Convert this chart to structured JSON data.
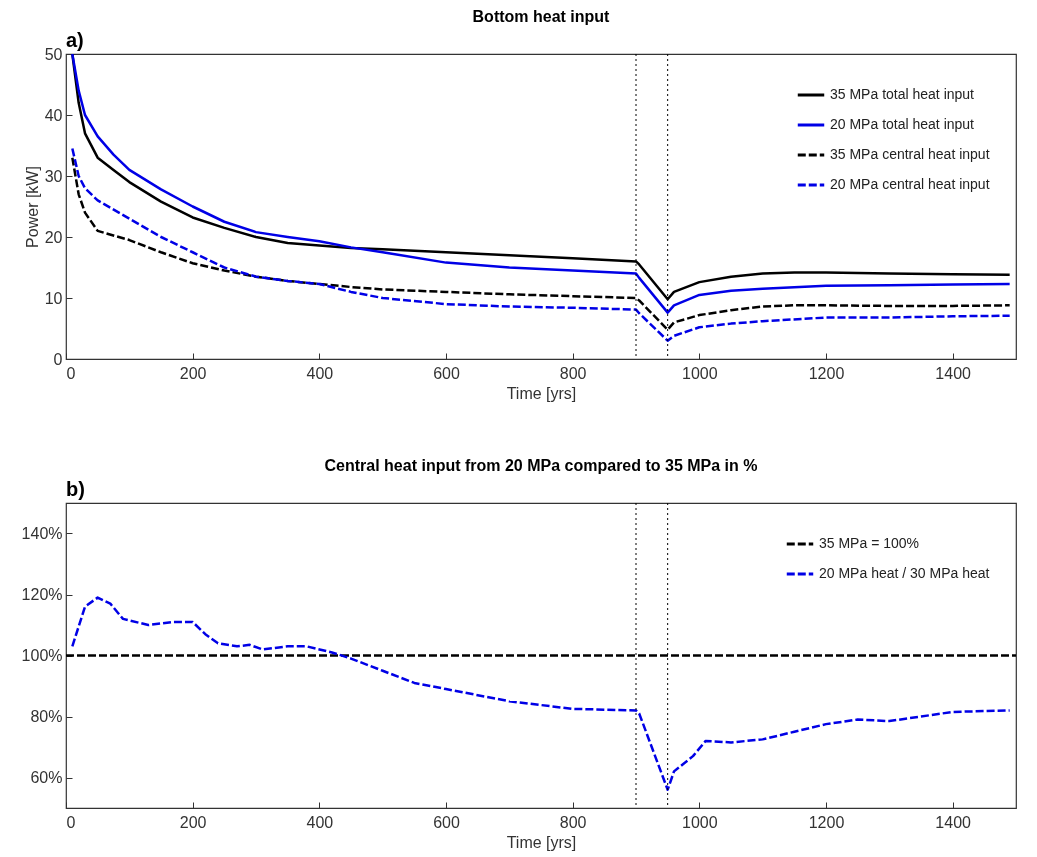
{
  "chart_data": [
    {
      "type": "line",
      "title": "Bottom heat input",
      "xlabel": "Time [yrs]",
      "ylabel": "Power [kW]",
      "annotations": [
        "a)"
      ],
      "xlim": [
        0,
        1500
      ],
      "xticks": [
        0,
        200,
        400,
        600,
        800,
        1000,
        1200,
        1400
      ],
      "ylim": [
        0,
        50
      ],
      "yticks": [
        0,
        10,
        20,
        30,
        40,
        50
      ],
      "grid": false,
      "legend": "top right",
      "ref_lines": [
        {
          "axis": "x",
          "value": 900,
          "color": "#000000",
          "line_style": "dotted"
        },
        {
          "axis": "x",
          "value": 950,
          "color": "#000000",
          "line_style": "dotted"
        }
      ],
      "series": [
        {
          "name": "35 MPa total heat input",
          "color": "#000000",
          "line_style": "solid",
          "x": [
            10,
            20,
            30,
            50,
            75,
            100,
            150,
            200,
            250,
            300,
            350,
            400,
            450,
            500,
            600,
            700,
            800,
            900,
            905,
            950,
            960,
            1000,
            1050,
            1100,
            1150,
            1200,
            1300,
            1400,
            1490
          ],
          "values": [
            50,
            42,
            37,
            33,
            31,
            29,
            25.8,
            23.2,
            21.5,
            20,
            19,
            18.6,
            18.2,
            18,
            17.5,
            17,
            16.5,
            16,
            15.5,
            9.8,
            11,
            12.6,
            13.5,
            14,
            14.2,
            14.2,
            14,
            13.9,
            13.8
          ]
        },
        {
          "name": "20 MPa total heat input",
          "color": "#0000e6",
          "line_style": "solid",
          "x": [
            10,
            20,
            30,
            50,
            75,
            100,
            150,
            200,
            250,
            300,
            350,
            400,
            450,
            500,
            600,
            700,
            800,
            900,
            905,
            950,
            960,
            1000,
            1050,
            1100,
            1200,
            1300,
            1400,
            1490
          ],
          "values": [
            50,
            44,
            40,
            36.5,
            33.5,
            31,
            27.8,
            25,
            22.5,
            20.8,
            20,
            19.3,
            18.3,
            17.5,
            15.8,
            15,
            14.5,
            14,
            13.3,
            7.6,
            8.8,
            10.5,
            11.2,
            11.5,
            12,
            12.1,
            12.2,
            12.3
          ]
        },
        {
          "name": "35 MPa central heat input",
          "color": "#000000",
          "line_style": "dashed",
          "x": [
            10,
            20,
            30,
            50,
            100,
            150,
            200,
            250,
            300,
            350,
            400,
            450,
            500,
            600,
            700,
            800,
            900,
            905,
            950,
            960,
            1000,
            1050,
            1100,
            1150,
            1200,
            1300,
            1400,
            1490
          ],
          "values": [
            33,
            27,
            24,
            21,
            19.5,
            17.5,
            15.7,
            14.5,
            13.5,
            12.8,
            12.3,
            11.8,
            11.4,
            11,
            10.6,
            10.3,
            10,
            9.6,
            4.8,
            6,
            7.2,
            8,
            8.6,
            8.8,
            8.8,
            8.7,
            8.7,
            8.8
          ]
        },
        {
          "name": "20 MPa central heat input",
          "color": "#0000e6",
          "line_style": "dashed",
          "x": [
            10,
            20,
            30,
            50,
            100,
            150,
            200,
            250,
            300,
            350,
            400,
            450,
            500,
            600,
            700,
            800,
            900,
            905,
            950,
            960,
            1000,
            1050,
            1100,
            1200,
            1300,
            1400,
            1490
          ],
          "values": [
            34.5,
            30,
            28,
            26,
            23,
            20,
            17.5,
            15,
            13.5,
            12.8,
            12.3,
            11,
            10,
            9,
            8.6,
            8.4,
            8.1,
            7.5,
            3,
            3.8,
            5.2,
            5.8,
            6.2,
            6.8,
            6.8,
            7,
            7.1
          ]
        }
      ]
    },
    {
      "type": "line",
      "title": "Central heat input from 20 MPa compared to 35 MPa in %",
      "xlabel": "Time [yrs]",
      "annotations": [
        "b)"
      ],
      "xlim": [
        0,
        1500
      ],
      "xticks": [
        0,
        200,
        400,
        600,
        800,
        1000,
        1200,
        1400
      ],
      "ylim": [
        50,
        150
      ],
      "yticks": [
        {
          "value": 60,
          "label": "60%"
        },
        {
          "value": 80,
          "label": "80%"
        },
        {
          "value": 100,
          "label": "100%"
        },
        {
          "value": 120,
          "label": "120%"
        },
        {
          "value": 140,
          "label": "140%"
        }
      ],
      "grid": false,
      "legend": "top right",
      "ref_lines": [
        {
          "axis": "x",
          "value": 900,
          "color": "#000000",
          "line_style": "dotted"
        },
        {
          "axis": "x",
          "value": 950,
          "color": "#000000",
          "line_style": "dotted"
        }
      ],
      "series": [
        {
          "name": "35 MPa = 100%",
          "color": "#000000",
          "line_style": "dashed",
          "x": [
            0,
            1500
          ],
          "values": [
            100,
            100
          ]
        },
        {
          "name": "20 MPa heat / 30 MPa heat",
          "color": "#0000e6",
          "line_style": "dashed",
          "x": [
            10,
            30,
            50,
            70,
            90,
            130,
            170,
            200,
            220,
            240,
            270,
            290,
            310,
            350,
            380,
            420,
            450,
            500,
            550,
            600,
            700,
            800,
            900,
            905,
            950,
            960,
            990,
            1010,
            1050,
            1100,
            1150,
            1200,
            1250,
            1300,
            1350,
            1400,
            1490
          ],
          "values": [
            103,
            116,
            119,
            117,
            112,
            110,
            111,
            111,
            107,
            104,
            103,
            103.5,
            102,
            103,
            103,
            101,
            99,
            95,
            91,
            89,
            85,
            82.5,
            82,
            81,
            56,
            62,
            67,
            72,
            71.5,
            72.5,
            75,
            77.5,
            79,
            78.5,
            80,
            81.5,
            82
          ]
        }
      ]
    }
  ]
}
